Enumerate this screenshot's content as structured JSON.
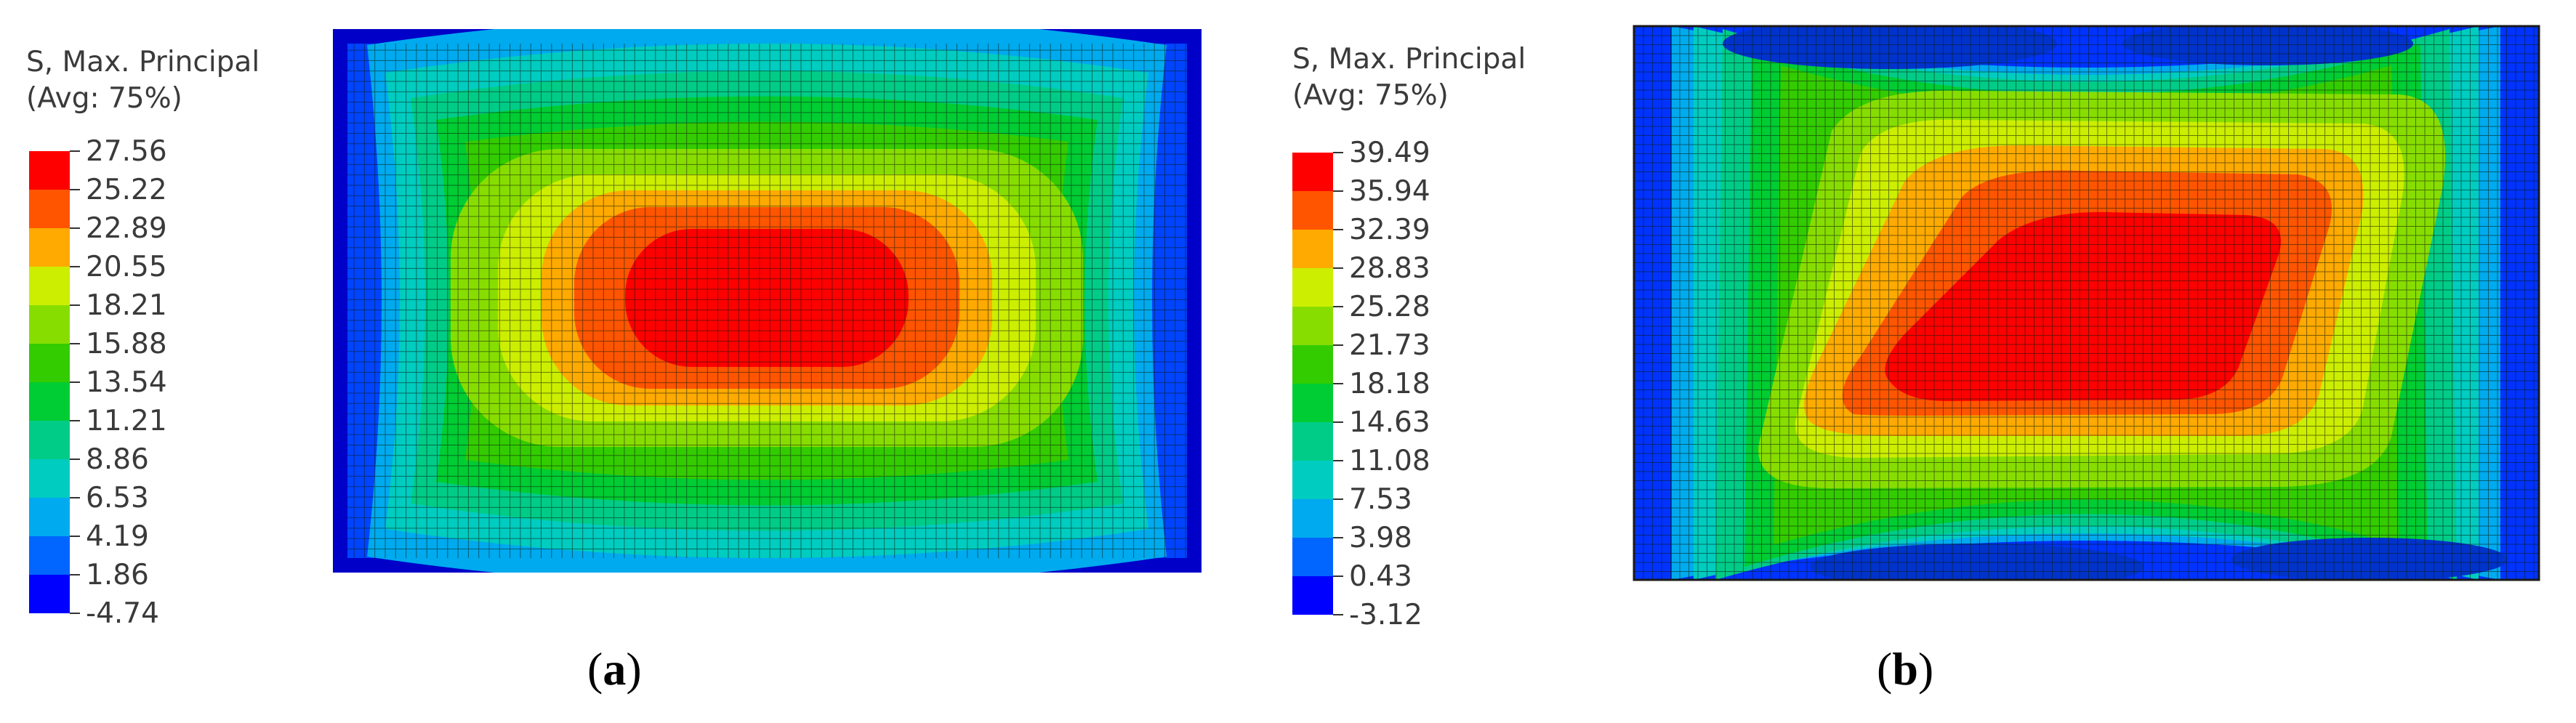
{
  "panels": [
    {
      "id": "a",
      "label_open": "(",
      "label_letter": "a",
      "label_close": ")",
      "legend": {
        "title_line1": "S, Max. Principal",
        "title_line2": "(Avg: 75%)",
        "ticks": [
          "27.56",
          "25.22",
          "22.89",
          "20.55",
          "18.21",
          "15.88",
          "13.54",
          "11.21",
          "8.86",
          "6.53",
          "4.19",
          "1.86",
          "-4.74"
        ]
      }
    },
    {
      "id": "b",
      "label_open": "(",
      "label_letter": "b",
      "label_close": ")",
      "legend": {
        "title_line1": "S, Max. Principal",
        "title_line2": "(Avg: 75%)",
        "ticks": [
          "39.49",
          "35.94",
          "32.39",
          "28.83",
          "25.28",
          "21.73",
          "18.18",
          "14.63",
          "11.08",
          "7.53",
          "3.98",
          "0.43",
          "-3.12"
        ]
      }
    }
  ],
  "contour_colors": [
    "#ff0000",
    "#ff5500",
    "#ffaa00",
    "#ccee00",
    "#88dd00",
    "#33cc00",
    "#00cc33",
    "#00cc88",
    "#00ccc0",
    "#00aaee",
    "#0066ff",
    "#0000ff"
  ]
}
